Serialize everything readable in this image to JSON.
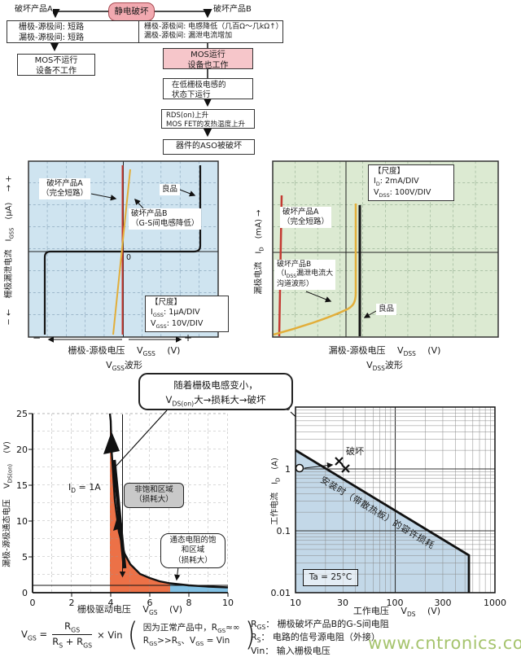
{
  "flowchart": {
    "root": "静电破坏",
    "branch_a": "破坏产品A",
    "branch_b": "破坏产品B",
    "box_a1": [
      "栅极-源极间: 短路",
      "漏极-源极间: 短路"
    ],
    "box_a2": [
      "MOS不运行",
      "设备不工作"
    ],
    "box_b1": [
      "栅极-源极间: 电感降低（几百Ω～几kΩ↑）",
      "漏极-源极间: 漏泄电流增加"
    ],
    "box_b2": [
      "MOS运行",
      "设备也工作"
    ],
    "box_b3": [
      "在低栅极电感的",
      "状态下运行"
    ],
    "box_b4": [
      "RDS(on)上升",
      "MOS FET的发热温度上升"
    ],
    "box_b5": "器件的ASO被破坏"
  },
  "scope_left": {
    "y_label": "−  ←　 栅极漏泄电流　I|GSS|　(μA) 　→  +",
    "x_label": "栅极-源极电压 　V|GSS|　 (V)",
    "x_minus": "−",
    "x_plus": "+",
    "waveform_caption": "V|GSS|波形",
    "zero": "0",
    "ann_a": [
      "破坏产品A",
      "（完全短路）"
    ],
    "ann_good": "良品",
    "ann_b": [
      "破坏产品B",
      "（G-S间电感降低）"
    ],
    "scale_box": [
      "【尺度】",
      "I|GSS|: 1μA/DIV",
      "V|GSS|: 10V/DIV"
    ]
  },
  "scope_right": {
    "y_label": "漏极电流　I|D|　(mA)  →",
    "x_label": "漏极-源极电压 　V|DSS|　 (V)",
    "waveform_caption": "V|DSS|波形",
    "ann_a": [
      "破坏产品A",
      "（完全短路）"
    ],
    "ann_b": [
      "破坏产品B",
      "（I|DSS|漏泄电流大",
      "沟道波形）"
    ],
    "ann_good": "良品",
    "scale_box": [
      "【尺度】",
      "I|D|: 2mA/DIV",
      "V|DSS|: 100V/DIV"
    ]
  },
  "callout": [
    "随着栅极电感变小，",
    "V|DS(on)|大→损耗大→破坏"
  ],
  "vdson_chart": {
    "y_ticks": [
      "25",
      "20",
      "15",
      "10",
      "5",
      "0"
    ],
    "x_ticks": [
      "0",
      "2",
      "4",
      "6",
      "8",
      "10"
    ],
    "y_label": "漏极-源极通态电压 　V|DS(on)|　 (V)",
    "x_label": "栅极驱动电压 　V|GS|　 (V)",
    "id_note": "I|D| = 1A",
    "region1": [
      "非饱和区域",
      "（损耗大）"
    ],
    "region2": [
      "通态电阻的饱",
      "和区域",
      "（损耗大）"
    ]
  },
  "formula": {
    "lead": "V|GS| = ",
    "numerator": "R|GS|",
    "denominator": "R|S| + R|GS|",
    "tail": "× Vin",
    "note1": "因为正常产品中，R|GS|≈∞",
    "note2": "R|GS|>>R|S|、V|GS| = Vin"
  },
  "soa_chart": {
    "y_ticks": [
      "10",
      "1",
      "0.1",
      "0.01"
    ],
    "x_ticks": [
      "10",
      "30",
      "100",
      "300",
      "1000"
    ],
    "y_label": "工作电流　I|D|　(A)",
    "x_label": "工作电压 　V|DS|　 (V)",
    "ann_break": "破坏",
    "ann_soa": "安装时（带散热板）的容许损耗",
    "ta": "Ta = 25°C"
  },
  "legend": [
    "R|GS|： 栅极破坏产品B的G-S间电阻",
    "R|S|： 电路的信号源电阻（外接）",
    "Vin： 输入栅极电压"
  ],
  "watermark": "www.cntronics.com",
  "colors": {
    "pink_root": "#f2a9b0",
    "pink_box": "#f6c6ca",
    "scope_left_bg": "#cfe4f0",
    "scope_right_bg": "#dcead2",
    "trace_red": "#c43a32",
    "trace_yellow": "#e2ae3a",
    "trace_black": "#151515",
    "region_orange": "#ec7147",
    "region_blue": "#82c1e4",
    "soa_fill": "#c3d8e8",
    "watermark_green": "#a6c46e"
  },
  "chart_data": [
    {
      "type": "line",
      "panel": "gate-leakage-oscillogram",
      "title": "VGSS波形",
      "xlabel": "栅极-源极电压 VGSS (V)",
      "ylabel": "栅极漏泄电流 IGSS (μA)",
      "scale": {
        "IGSS": "1μA/DIV",
        "VGSS": "10V/DIV"
      },
      "grid": "10x8 divisions, dashed",
      "series": [
        {
          "name": "破坏产品A（完全短路）",
          "shape": "vertical line through 0V (dead short)"
        },
        {
          "name": "破坏产品B（G-S间电感降低）",
          "shape": "steep resistive line through origin, slight slope"
        },
        {
          "name": "良品",
          "shape": "zero leakage current, breakdown at about -42V and +41V (≈ ±4 DIV)"
        }
      ]
    },
    {
      "type": "line",
      "panel": "drain-current-oscillogram",
      "title": "VDSS波形",
      "xlabel": "漏极-源极电压 VDSS (V)",
      "ylabel": "漏极电流 ID (mA)",
      "scale": {
        "ID": "2mA/DIV",
        "VDSS": "100V/DIV"
      },
      "grid": "10x8 divisions, dashed",
      "series": [
        {
          "name": "破坏产品A（完全短路）",
          "shape": "vertical line near 0V"
        },
        {
          "name": "破坏产品B（IDSS漏泄电流大 沟道波形）",
          "shape": "large rising leakage current, sharp rise near ≈400V"
        },
        {
          "name": "良品",
          "shape": "zero current up to breakdown ≈400V (≈4 DIV), then vertical"
        }
      ]
    },
    {
      "type": "line",
      "panel": "vdson-vs-vgs",
      "xlabel": "栅极驱动电压 VGS (V)",
      "ylabel": "漏极-源极通态电压 VDS(on) (V)",
      "xlim": [
        0,
        10
      ],
      "ylim": [
        0,
        25
      ],
      "condition": "ID = 1A",
      "x": [
        4.0,
        4.2,
        4.5,
        5.0,
        5.5,
        6.0,
        7.0,
        8.0,
        9.0,
        10.0
      ],
      "y": [
        24,
        13,
        6.5,
        4.0,
        2.6,
        2.0,
        1.35,
        1.05,
        0.9,
        0.8
      ],
      "regions": [
        {
          "name": "非饱和区域（损耗大）",
          "x_range": [
            3.9,
            7.0
          ],
          "color": "orange"
        },
        {
          "name": "通态电阻的饱和区域（损耗大）",
          "x_range": [
            7.0,
            10.0
          ],
          "color": "blue"
        }
      ],
      "reference_line_y": 1
    },
    {
      "type": "line",
      "panel": "soa-allowable-loss",
      "xlabel": "工作电压 VDS (V)",
      "ylabel": "工作电流 ID (A)",
      "xscale": "log",
      "yscale": "log",
      "xlim": [
        10,
        1000
      ],
      "ylim": [
        0.01,
        10
      ],
      "temperature": "Ta = 25°C",
      "soa_line": [
        [
          10,
          2
        ],
        [
          550,
          0.037
        ],
        [
          550,
          0.01
        ]
      ],
      "operating_point": [
        10,
        1
      ],
      "failure_points": [
        [
          25,
          1.1
        ],
        [
          30,
          0.95
        ]
      ],
      "annotations": [
        "破坏",
        "安装时（带散热板）的容许损耗"
      ]
    }
  ]
}
